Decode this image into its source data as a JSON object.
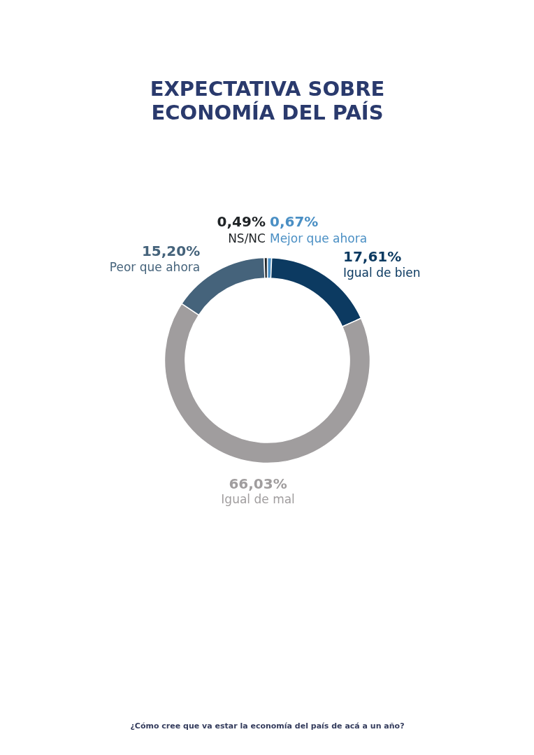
{
  "chart_data": {
    "type": "donut",
    "title": "EXPECTATIVA SOBRE ECONOMÍA DEL PAÍS",
    "categories": [
      "Mejor que ahora",
      "Igual de bien",
      "Igual de mal",
      "Peor que ahora",
      "NS/NC"
    ],
    "values": [
      0.67,
      17.61,
      66.03,
      15.2,
      0.49
    ],
    "colors": [
      "#4a8fc4",
      "#0c3a61",
      "#a09d9e",
      "#45637b",
      "#1f2326"
    ],
    "value_labels": [
      "0,67%",
      "17,61%",
      "66,03%",
      "15,20%",
      "0,49%"
    ],
    "annotations": [
      "¿Cómo cree que va estar la economía del país de acá a un año?"
    ]
  }
}
